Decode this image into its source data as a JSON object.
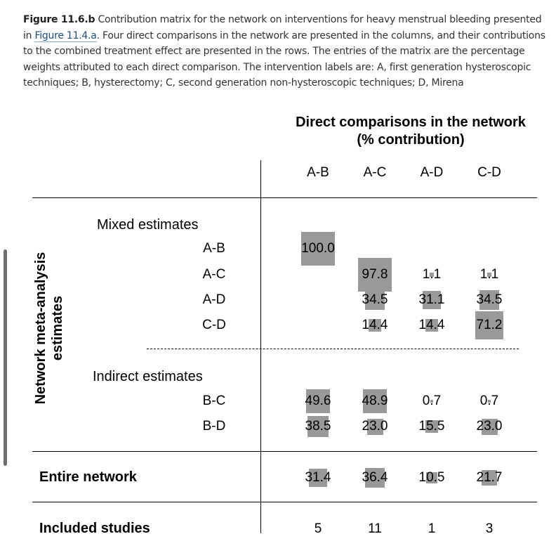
{
  "caption": {
    "figure_label": "Figure 11.6.b",
    "text_1": " Contribution matrix for the network on interventions for heavy menstrual bleeding presented in ",
    "link_text": "Figure 11.4.a",
    "text_2": ". Four direct comparisons in the network are presented in the columns, and their contributions to the combined treatment effect are presented in the rows. The entries of the matrix are the percentage weights attributed to each direct comparison. The intervention labels are: A, first generation hysteroscopic techniques; B, hysterectomy; C, second generation non-hysteroscopic techniques; D, Mirena"
  },
  "matrix": {
    "header_line1": "Direct comparisons in the network",
    "header_line2": "(% contribution)",
    "side_line1": "Network meta-analysis",
    "side_line2": "estimates",
    "mixed_label": "Mixed estimates",
    "indirect_label": "Indirect estimates",
    "entire_label": "Entire network",
    "studies_label": "Included studies",
    "box_color": "#999999"
  },
  "chart_data": {
    "type": "table",
    "columns": [
      "A-B",
      "A-C",
      "A-D",
      "C-D"
    ],
    "mixed_rows": [
      {
        "label": "A-B",
        "values": [
          100.0,
          null,
          null,
          null
        ]
      },
      {
        "label": "A-C",
        "values": [
          null,
          97.8,
          1.1,
          1.1
        ]
      },
      {
        "label": "A-D",
        "values": [
          null,
          34.5,
          31.1,
          34.5
        ]
      },
      {
        "label": "C-D",
        "values": [
          null,
          14.4,
          14.4,
          71.2
        ]
      }
    ],
    "mixed_value_text": [
      [
        "100.0",
        "",
        "",
        ""
      ],
      [
        "",
        "97.8",
        "1.1",
        "1.1"
      ],
      [
        "",
        "34.5",
        "31.1",
        "34.5"
      ],
      [
        "",
        "14.4",
        "14.4",
        "71.2"
      ]
    ],
    "indirect_rows": [
      {
        "label": "B-C",
        "values": [
          49.6,
          48.9,
          0.7,
          0.7
        ]
      },
      {
        "label": "B-D",
        "values": [
          38.5,
          23.0,
          15.5,
          23.0
        ]
      }
    ],
    "indirect_value_text": [
      [
        "49.6",
        "48.9",
        "0.7",
        "0.7"
      ],
      [
        "38.5",
        "23.0",
        "15.5",
        "23.0"
      ]
    ],
    "entire_network": [
      31.4,
      36.4,
      10.5,
      21.7
    ],
    "entire_network_text": [
      "31.4",
      "36.4",
      "10.5",
      "21.7"
    ],
    "included_studies": [
      5,
      11,
      1,
      3
    ],
    "included_studies_text": [
      "5",
      "11",
      "1",
      "3"
    ]
  }
}
